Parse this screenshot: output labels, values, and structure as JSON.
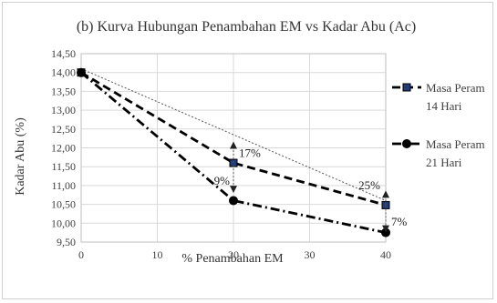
{
  "chart_data": {
    "type": "line",
    "title": "(b) Kurva Hubungan Penambahan EM vs Kadar Abu (Ac)",
    "xlabel": "% Penambahan EM",
    "ylabel": "Kadar Abu (%)",
    "xlim": [
      0,
      40
    ],
    "ylim": [
      9.5,
      14.5
    ],
    "x_ticks": [
      "0",
      "10",
      "20",
      "30",
      "40"
    ],
    "y_ticks": [
      "9,50",
      "10,00",
      "10,50",
      "11,00",
      "11,50",
      "12,00",
      "12,50",
      "13,00",
      "13,50",
      "14,00",
      "14,50"
    ],
    "grid": "both",
    "legend_position": "right",
    "x": [
      0,
      20,
      40
    ],
    "series": [
      {
        "name": "Masa Peram 14 Hari",
        "legend_lines": [
          "Masa Peram",
          "14 Hari"
        ],
        "values": [
          14.0,
          11.6,
          10.48
        ],
        "color": "#1f3c78",
        "marker": "square",
        "line_style": "dashed"
      },
      {
        "name": "Masa Peram 21 Hari",
        "legend_lines": [
          "Masa Peram",
          "21 Hari"
        ],
        "values": [
          14.0,
          10.6,
          9.75
        ],
        "color": "#000000",
        "marker": "circle",
        "line_style": "dash-dot"
      }
    ],
    "reference_line": {
      "x": [
        0,
        40
      ],
      "values": [
        14.1,
        10.6
      ],
      "style": "dotted"
    },
    "annotations": [
      {
        "text": "17%",
        "x": 20,
        "y": 11.85,
        "arrow_from": 11.6,
        "arrow_to": 12.12
      },
      {
        "text": "9%",
        "x": 20,
        "y": 11.12,
        "arrow_from": 11.55,
        "arrow_to": 10.85
      },
      {
        "text": "25%",
        "x": 40,
        "y": 11.0,
        "arrow_from": 10.48,
        "arrow_to": 10.82
      },
      {
        "text": "7%",
        "x": 40,
        "y": 10.03,
        "arrow_from": 10.48,
        "arrow_to": 9.8
      }
    ]
  }
}
